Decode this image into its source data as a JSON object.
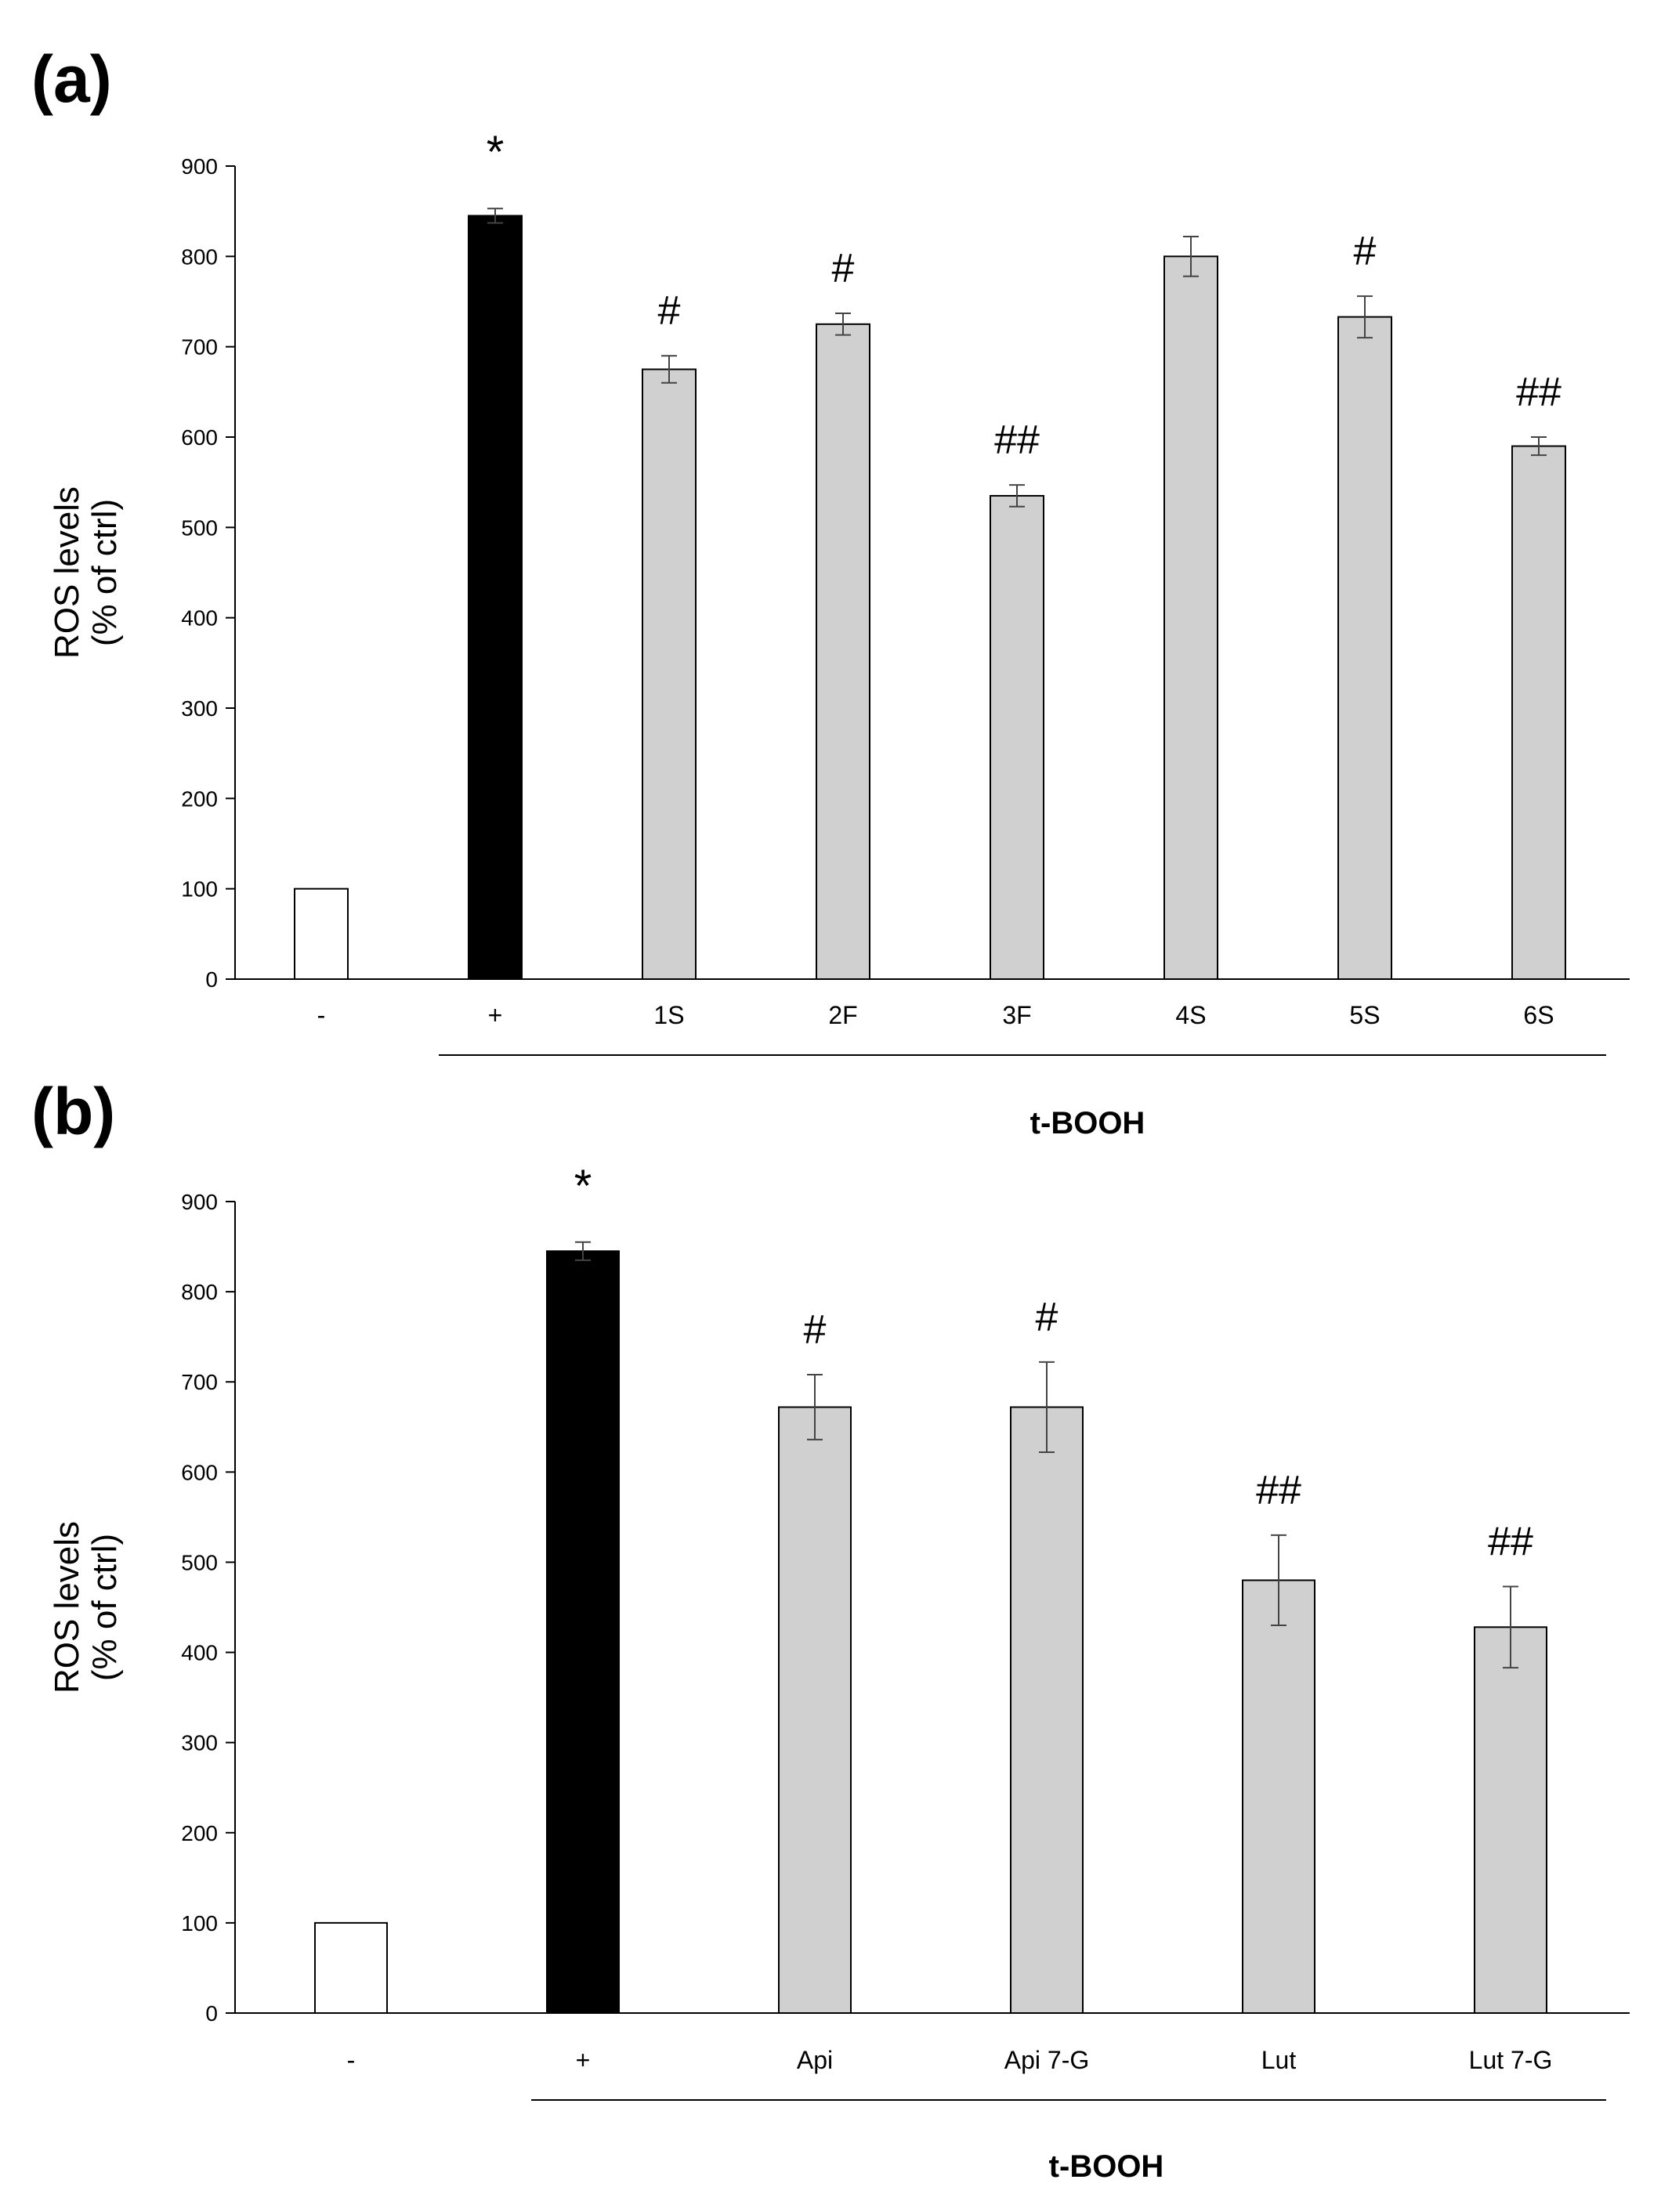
{
  "colors": {
    "control": "#ffffff",
    "positive": "#000000",
    "treatment": "#d0d0d0",
    "stroke": "#000000",
    "error": "#444444"
  },
  "chart_data": [
    {
      "type": "bar",
      "panel_label": "(a)",
      "ylabel_line1": "ROS levels",
      "ylabel_line2": "(% of ctrl)",
      "ylim": [
        0,
        900
      ],
      "yticks": [
        0,
        100,
        200,
        300,
        400,
        500,
        600,
        700,
        800,
        900
      ],
      "categories": [
        "-",
        "+",
        "1S",
        "2F",
        "3F",
        "4S",
        "5S",
        "6S"
      ],
      "values": [
        100,
        845,
        675,
        725,
        535,
        800,
        733,
        590
      ],
      "errors": [
        0,
        8,
        15,
        12,
        12,
        22,
        23,
        10
      ],
      "bar_kinds": [
        "control",
        "positive",
        "treatment",
        "treatment",
        "treatment",
        "treatment",
        "treatment",
        "treatment"
      ],
      "significance": [
        "",
        "*",
        "#",
        "#",
        "##",
        "",
        "#",
        "##"
      ],
      "group_label": "t-BOOH",
      "group_start_index": 1
    },
    {
      "type": "bar",
      "panel_label": "(b)",
      "ylabel_line1": "ROS levels",
      "ylabel_line2": "(% of ctrl)",
      "ylim": [
        0,
        900
      ],
      "yticks": [
        0,
        100,
        200,
        300,
        400,
        500,
        600,
        700,
        800,
        900
      ],
      "categories": [
        "-",
        "+",
        "Api",
        "Api 7-G",
        "Lut",
        "Lut 7-G"
      ],
      "values": [
        100,
        845,
        672,
        672,
        480,
        428
      ],
      "errors": [
        0,
        10,
        36,
        50,
        50,
        45
      ],
      "bar_kinds": [
        "control",
        "positive",
        "treatment",
        "treatment",
        "treatment",
        "treatment"
      ],
      "significance": [
        "",
        "*",
        "#",
        "#",
        "##",
        "##"
      ],
      "group_label": "t-BOOH",
      "group_start_index": 1
    }
  ]
}
